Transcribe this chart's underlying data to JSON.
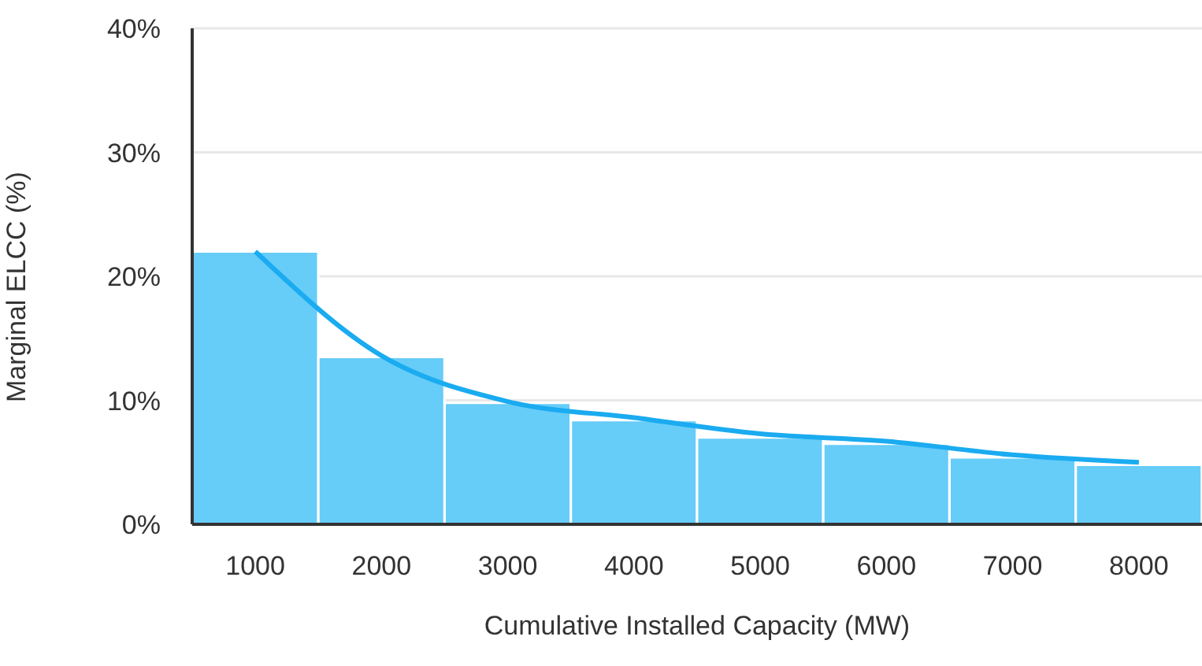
{
  "chart_data": {
    "type": "bar",
    "xlabel": "Cumulative Installed Capacity (MW)",
    "ylabel": "Marginal ELCC (%)",
    "categories": [
      "1000",
      "2000",
      "3000",
      "4000",
      "5000",
      "6000",
      "7000",
      "8000"
    ],
    "series": [
      {
        "color": "#66ccf8",
        "values": [
          22.0,
          13.5,
          9.8,
          8.4,
          7.0,
          6.5,
          5.4,
          4.8
        ]
      },
      {
        "type": "line",
        "color": "#1aabf0",
        "values": [
          22.0,
          13.6,
          9.9,
          8.6,
          7.3,
          6.7,
          5.6,
          5.0
        ]
      }
    ],
    "ylim": [
      0,
      40
    ],
    "yticks": [
      {
        "value": 0,
        "label": "0%"
      },
      {
        "value": 10,
        "label": "10%"
      },
      {
        "value": 20,
        "label": "20%"
      },
      {
        "value": 30,
        "label": "30%"
      },
      {
        "value": 40,
        "label": "40%"
      }
    ],
    "grid": "y",
    "legend": false,
    "marker": "none",
    "line_style": "solid"
  }
}
